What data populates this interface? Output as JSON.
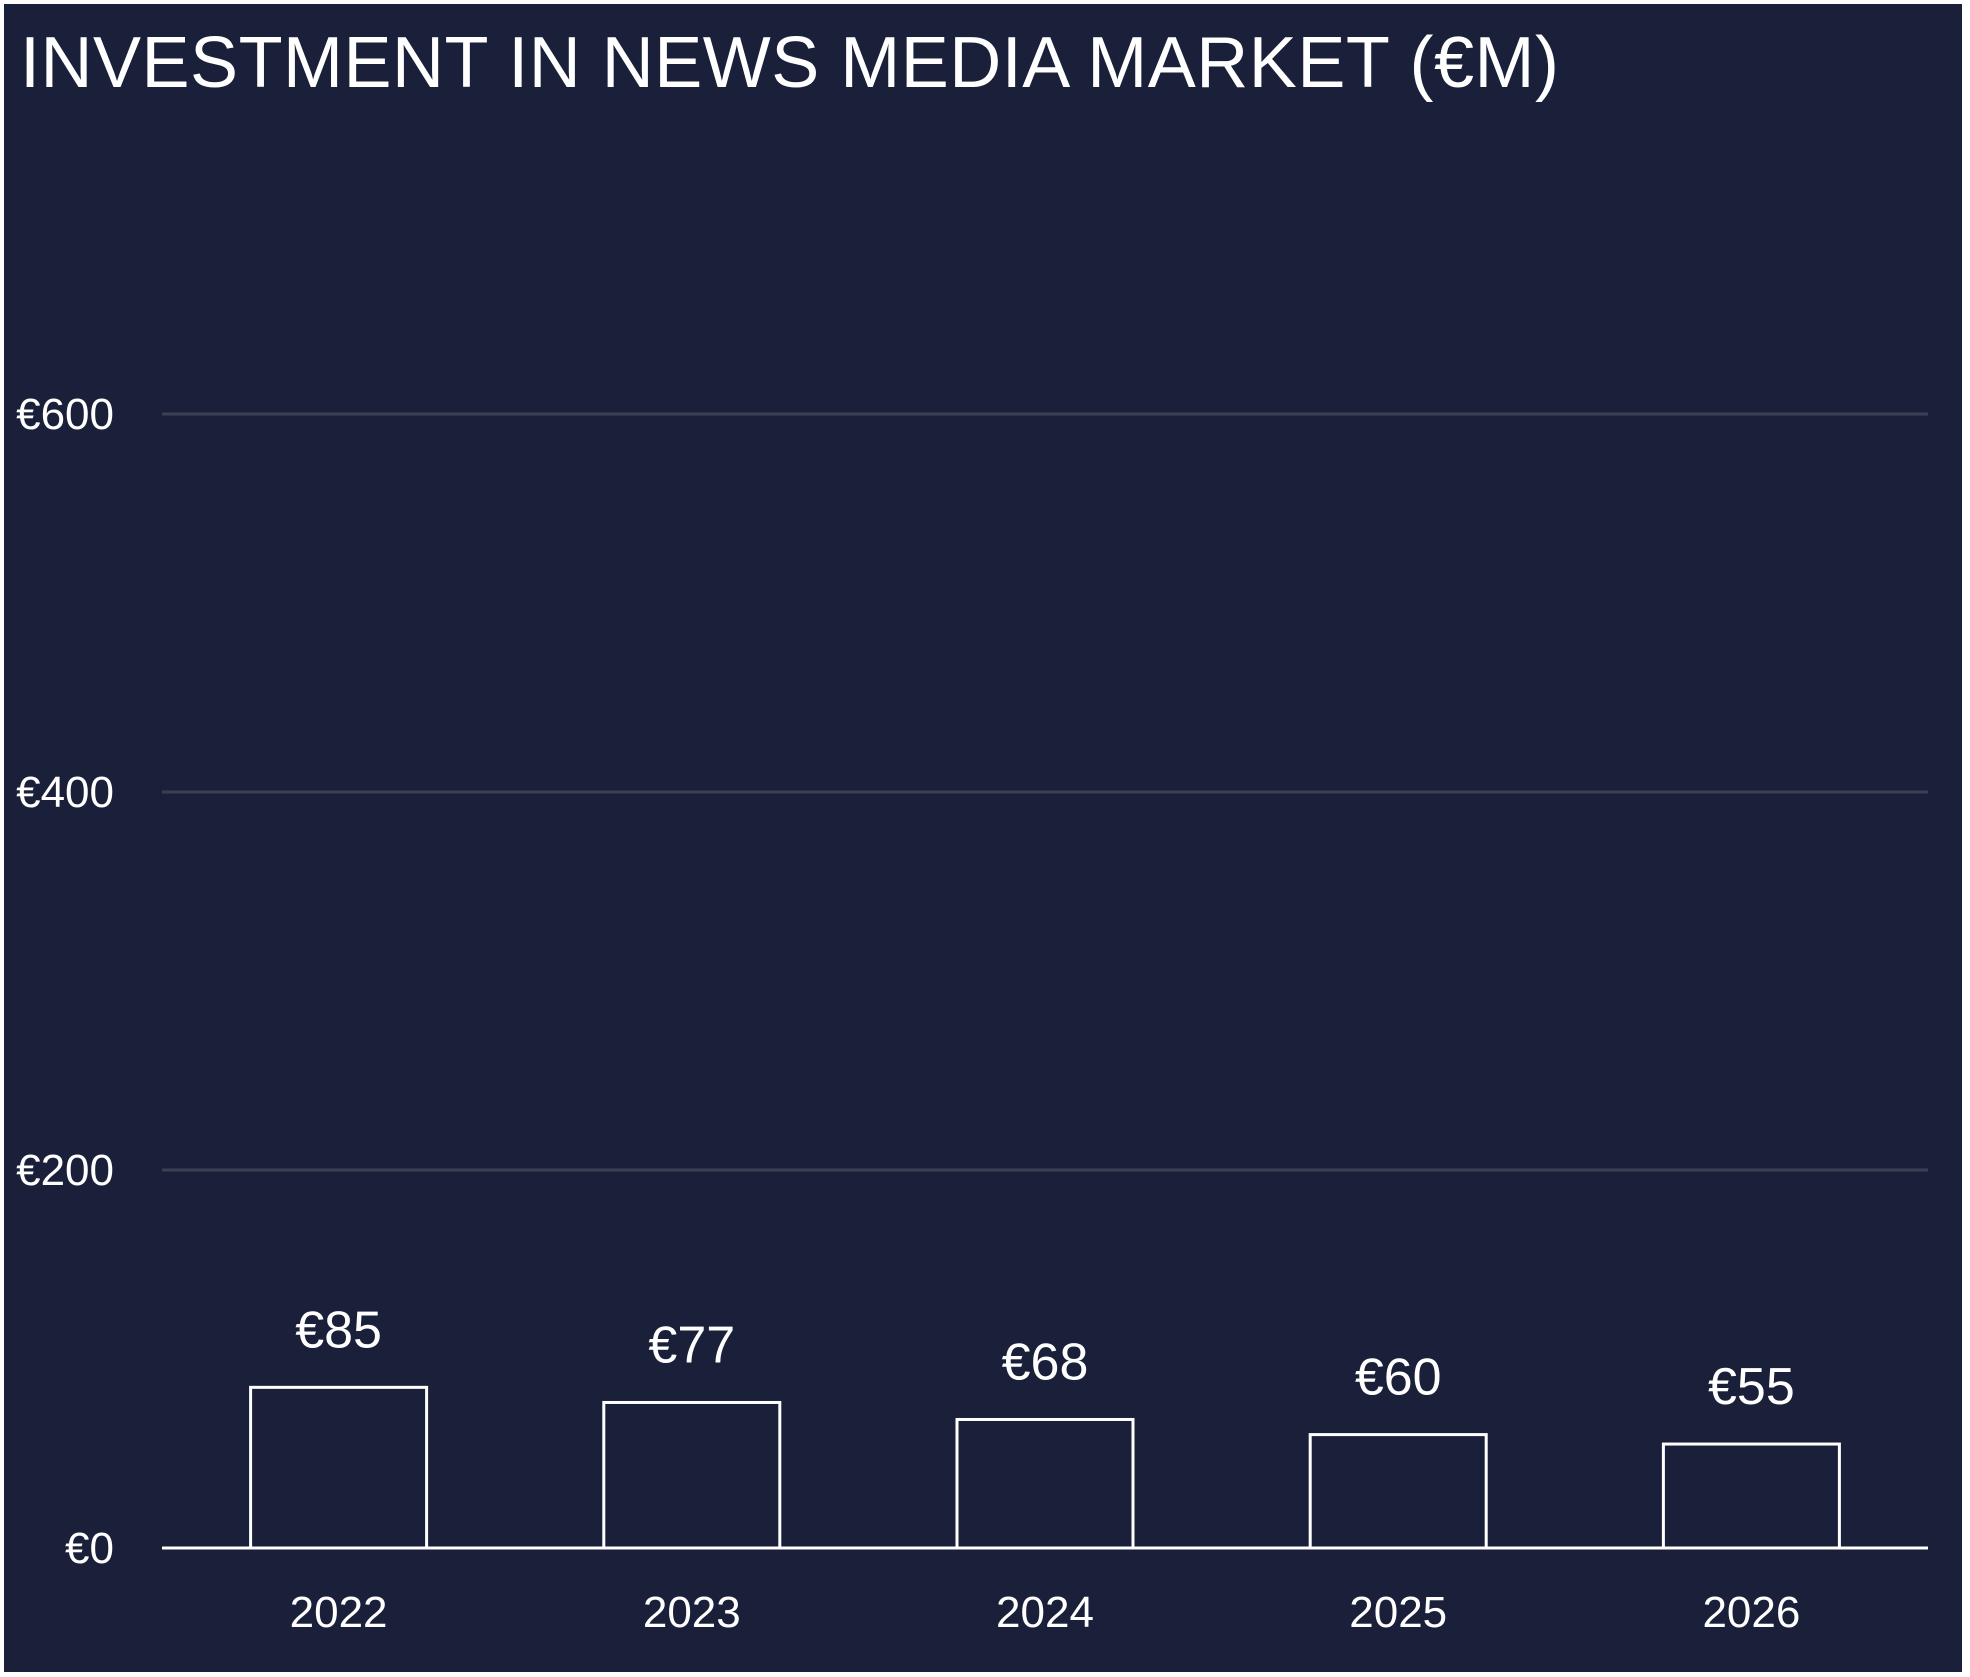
{
  "chart_data": {
    "type": "bar",
    "title": "INVESTMENT IN NEWS MEDIA MARKET (€M)",
    "categories": [
      "2022",
      "2023",
      "2024",
      "2025",
      "2026"
    ],
    "values": [
      85,
      77,
      68,
      60,
      55
    ],
    "data_labels": [
      "€85",
      "€77",
      "€68",
      "€60",
      "€55"
    ],
    "ylim": [
      0,
      600
    ],
    "yticks": [
      0,
      200,
      400,
      600
    ],
    "ytick_labels": [
      "€0",
      "€200",
      "€400",
      "€600"
    ],
    "grid": true,
    "legend": "none",
    "colors": {
      "background": "#1b203a",
      "bar_fill": "#1b203a",
      "bar_stroke": "#ffffff",
      "grid": "#3a3f52",
      "axis": "#ffffff",
      "text": "#ffffff"
    }
  }
}
